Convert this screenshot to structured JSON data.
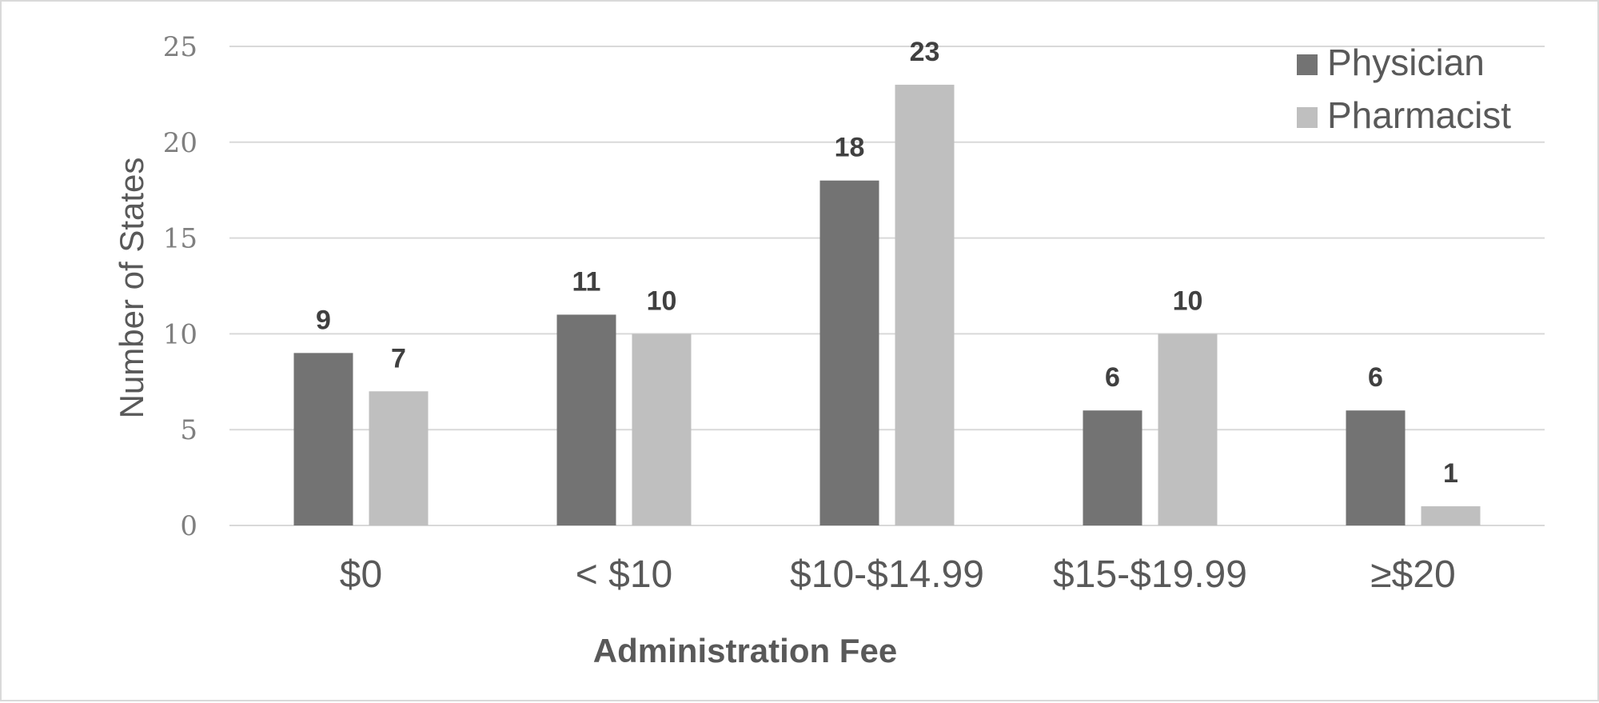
{
  "chart_data": {
    "type": "bar",
    "categories": [
      "$0",
      "< $10",
      "$10-$14.99",
      "$15-$19.99",
      "≥$20"
    ],
    "series": [
      {
        "name": "Physician",
        "values": [
          9,
          11,
          18,
          6,
          6
        ],
        "color": "#737373"
      },
      {
        "name": "Pharmacist",
        "values": [
          7,
          10,
          23,
          10,
          1
        ],
        "color": "#bfbfbf"
      }
    ],
    "xlabel": "Administration Fee",
    "ylabel": "Number of States",
    "ylim": [
      0,
      25
    ],
    "yticks": [
      0,
      5,
      10,
      15,
      20,
      25
    ],
    "grid": true,
    "legend": "top-right",
    "data_labels": true
  }
}
